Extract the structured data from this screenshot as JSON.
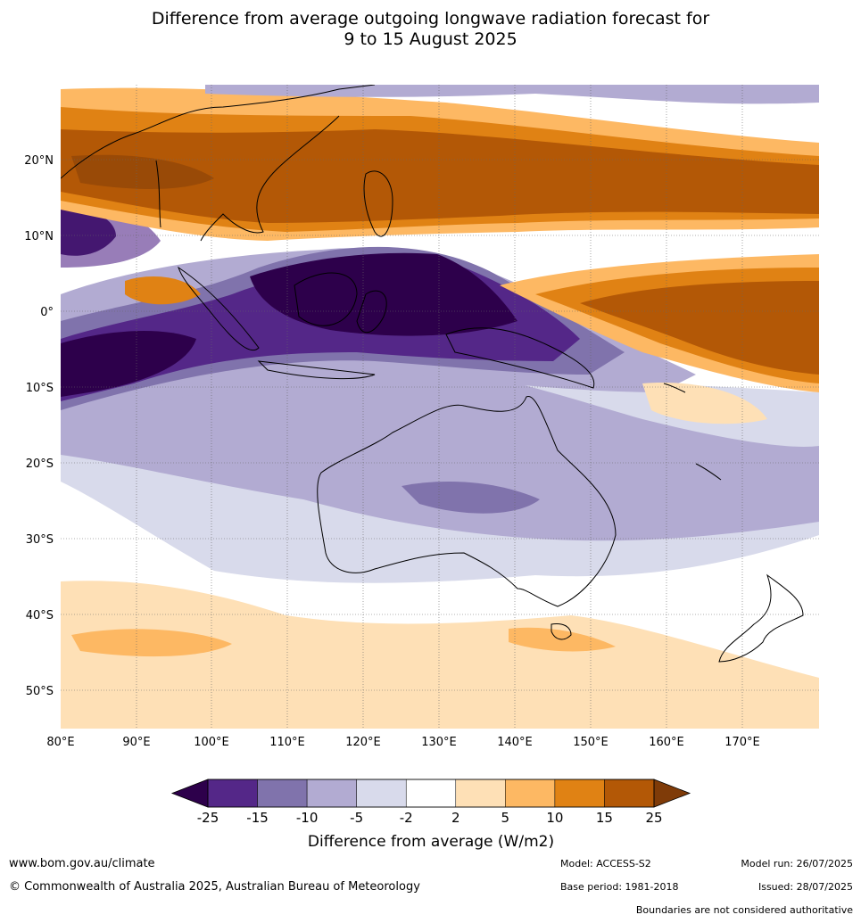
{
  "title_line1": "Difference from average outgoing longwave radiation forecast for",
  "title_line2": "9 to 15 August 2025",
  "map": {
    "lon_labels": [
      "80°E",
      "90°E",
      "100°E",
      "110°E",
      "120°E",
      "130°E",
      "140°E",
      "150°E",
      "160°E",
      "170°E"
    ],
    "lat_labels": [
      "20°N",
      "10°N",
      "0°",
      "10°S",
      "20°S",
      "30°S",
      "40°S",
      "50°S"
    ],
    "lon_range": [
      80,
      180
    ],
    "lat_range": [
      -55,
      30
    ]
  },
  "colorbar": {
    "title": "Difference from average (W/m2)",
    "ticks": [
      "-25",
      "-15",
      "-10",
      "-5",
      "-2",
      "2",
      "5",
      "10",
      "15",
      "25"
    ],
    "colors": [
      "#2d004b",
      "#542788",
      "#8073ac",
      "#b2abd2",
      "#d8daeb",
      "#ffffff",
      "#fee0b6",
      "#fdb863",
      "#e08214",
      "#b35806",
      "#7f3b08"
    ]
  },
  "footer": {
    "website": "www.bom.gov.au/climate",
    "copyright": "© Commonwealth of Australia 2025, Australian Bureau of Meteorology",
    "model": "Model: ACCESS-S2",
    "base_period": "Base period: 1981-2018",
    "model_run": "Model run: 26/07/2025",
    "issued": "Issued: 28/07/2025",
    "disclaimer": "Boundaries are not considered authoritative"
  }
}
